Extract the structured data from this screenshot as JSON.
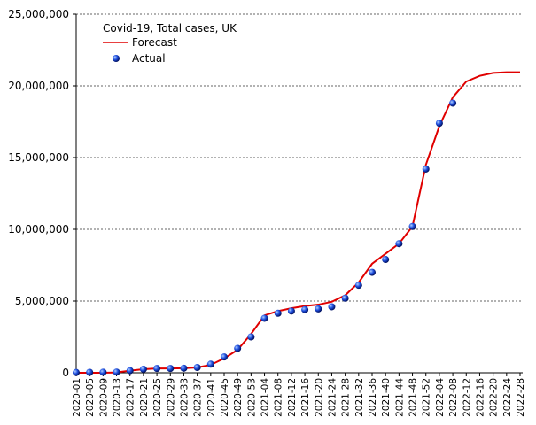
{
  "chart_data": {
    "type": "line",
    "title": "Covid-19, Total cases, UK",
    "categories": [
      "2020-01",
      "2020-05",
      "2020-09",
      "2020-13",
      "2020-17",
      "2020-21",
      "2020-25",
      "2020-29",
      "2020-33",
      "2020-37",
      "2020-41",
      "2020-45",
      "2020-49",
      "2020-53",
      "2021-04",
      "2021-08",
      "2021-12",
      "2021-16",
      "2021-20",
      "2021-24",
      "2021-28",
      "2021-32",
      "2021-36",
      "2021-40",
      "2021-44",
      "2021-48",
      "2021-52",
      "2022-04",
      "2022-08",
      "2022-12",
      "2022-16",
      "2022-20",
      "2022-24",
      "2022-28"
    ],
    "series": [
      {
        "name": "Forecast",
        "color": "#e00000",
        "marker": "line",
        "values": [
          0,
          0,
          0,
          20000,
          150000,
          250000,
          300000,
          300000,
          320000,
          370000,
          550000,
          1000000,
          1600000,
          2700000,
          4000000,
          4300000,
          4500000,
          4650000,
          4750000,
          4950000,
          5400000,
          6300000,
          7600000,
          8300000,
          9000000,
          10200000,
          14500000,
          17200000,
          19200000,
          20300000,
          20700000,
          20900000,
          20950000,
          20950000
        ]
      },
      {
        "name": "Actual",
        "color": "#1030c0",
        "marker": "sphere",
        "values": [
          20000,
          30000,
          40000,
          50000,
          150000,
          250000,
          300000,
          300000,
          320000,
          370000,
          600000,
          1100000,
          1700000,
          2500000,
          3800000,
          4150000,
          4300000,
          4400000,
          4450000,
          4600000,
          5200000,
          6100000,
          7000000,
          7900000,
          9000000,
          10200000,
          14200000,
          17400000,
          18800000,
          null,
          null,
          null,
          null,
          null
        ]
      }
    ],
    "ylim": [
      0,
      25000000
    ],
    "yticks": [
      {
        "value": 0,
        "label": "0"
      },
      {
        "value": 5000000,
        "label": "5,000,000"
      },
      {
        "value": 10000000,
        "label": "10,000,000"
      },
      {
        "value": 15000000,
        "label": "15,000,000"
      },
      {
        "value": 20000000,
        "label": "20,000,000"
      },
      {
        "value": 25000000,
        "label": "25,000,000"
      }
    ],
    "grid": true
  }
}
